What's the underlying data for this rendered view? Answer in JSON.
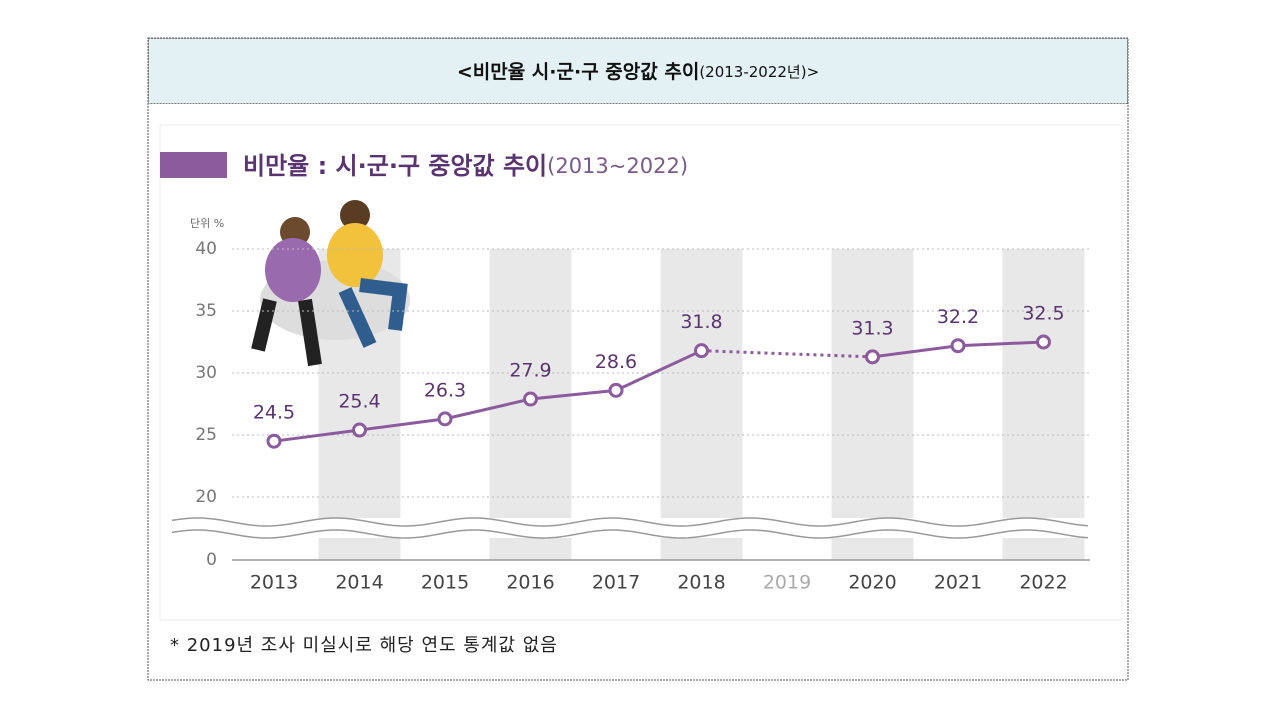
{
  "header": {
    "title": "<비만율 시·군·구 중앙값 추이",
    "title_years": "(2013-2022년)>"
  },
  "chart_data": {
    "type": "line",
    "title": "비만율 : 시·군·구 중앙값 추이",
    "subtitle": "(2013~2022)",
    "unit_label": "단위 %",
    "categories": [
      "2013",
      "2014",
      "2015",
      "2016",
      "2017",
      "2018",
      "2019",
      "2020",
      "2021",
      "2022"
    ],
    "values": [
      24.5,
      25.4,
      26.3,
      27.9,
      28.6,
      31.8,
      null,
      31.3,
      32.2,
      32.5
    ],
    "color": "#8c5b9e",
    "ylim": [
      0,
      40
    ],
    "axis_break": [
      0,
      20
    ],
    "yticks": [
      0,
      20,
      25,
      30,
      35,
      40
    ],
    "grid": true
  },
  "footnote": "* 2019년 조사 미실시로 해당 연도 통계값 없음"
}
